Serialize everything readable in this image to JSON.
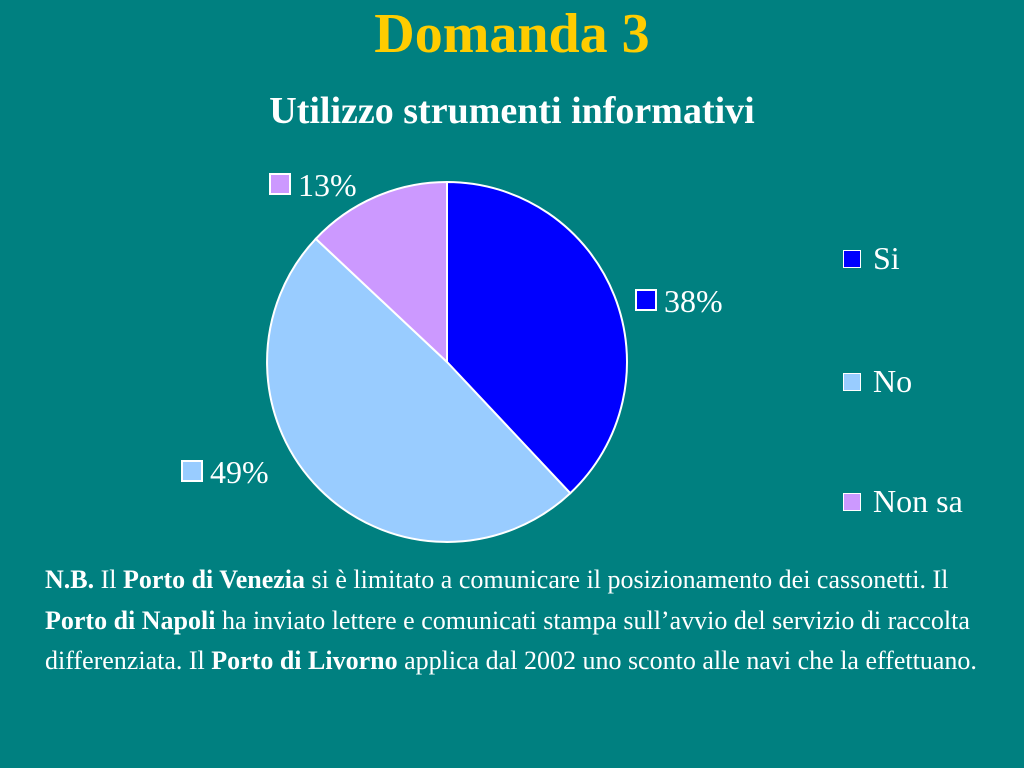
{
  "slide": {
    "title": "Domanda 3"
  },
  "chart_data": {
    "type": "pie",
    "title": "Utilizzo strumenti informativi",
    "categories": [
      "Si",
      "No",
      "Non sa"
    ],
    "values": [
      38,
      49,
      13
    ],
    "data_labels": [
      "38%",
      "49%",
      "13%"
    ],
    "colors": [
      "#0000ff",
      "#99ccff",
      "#cc99ff"
    ],
    "slice_border_color": "#ffffff",
    "legend_position": "right",
    "start_angle_deg": 0,
    "direction": "clockwise"
  },
  "note": {
    "nb": "N.B.",
    "t1": " Il ",
    "venezia": "Porto di Venezia",
    "t2": " si è limitato a comunicare il posizionamento dei cassonetti. Il ",
    "napoli": "Porto di Napoli",
    "t3": " ha inviato lettere e comunicati stampa sull’avvio del servizio di raccolta differenziata. Il ",
    "livorno": "Porto di Livorno",
    "t4": " applica dal 2002 uno sconto alle navi che la effettuano."
  }
}
